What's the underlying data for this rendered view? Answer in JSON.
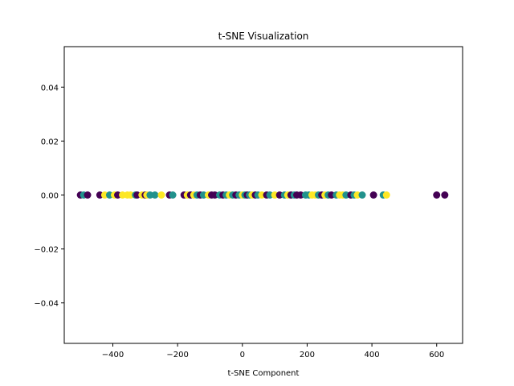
{
  "chart_data": {
    "type": "scatter",
    "title": "t-SNE Visualization",
    "xlabel": "t-SNE Component",
    "ylabel": "",
    "xlim": [
      -550,
      680
    ],
    "ylim": [
      -0.055,
      0.055
    ],
    "xticks": [
      -400,
      -200,
      0,
      200,
      400,
      600
    ],
    "xtick_labels": [
      "−400",
      "−200",
      "0",
      "200",
      "400",
      "600"
    ],
    "yticks": [
      -0.04,
      -0.02,
      0.0,
      0.02,
      0.04
    ],
    "ytick_labels": [
      "−0.04",
      "−0.02",
      "0.00",
      "0.02",
      "0.04"
    ],
    "grid": false,
    "legend": "none",
    "colors": {
      "purple": "#440154",
      "teal": "#21918c",
      "yellow": "#fde725"
    },
    "points": [
      {
        "x": -500,
        "y": 0,
        "c": "purple"
      },
      {
        "x": -490,
        "y": 0,
        "c": "teal"
      },
      {
        "x": -478,
        "y": 0,
        "c": "purple"
      },
      {
        "x": -440,
        "y": 0,
        "c": "purple"
      },
      {
        "x": -425,
        "y": 0,
        "c": "yellow"
      },
      {
        "x": -410,
        "y": 0,
        "c": "teal"
      },
      {
        "x": -395,
        "y": 0,
        "c": "yellow"
      },
      {
        "x": -385,
        "y": 0,
        "c": "purple"
      },
      {
        "x": -370,
        "y": 0,
        "c": "yellow"
      },
      {
        "x": -355,
        "y": 0,
        "c": "yellow"
      },
      {
        "x": -345,
        "y": 0,
        "c": "yellow"
      },
      {
        "x": -330,
        "y": 0,
        "c": "teal"
      },
      {
        "x": -325,
        "y": 0,
        "c": "purple"
      },
      {
        "x": -310,
        "y": 0,
        "c": "yellow"
      },
      {
        "x": -300,
        "y": 0,
        "c": "purple"
      },
      {
        "x": -295,
        "y": 0,
        "c": "yellow"
      },
      {
        "x": -285,
        "y": 0,
        "c": "teal"
      },
      {
        "x": -270,
        "y": 0,
        "c": "teal"
      },
      {
        "x": -250,
        "y": 0,
        "c": "yellow"
      },
      {
        "x": -225,
        "y": 0,
        "c": "purple"
      },
      {
        "x": -215,
        "y": 0,
        "c": "teal"
      },
      {
        "x": -180,
        "y": 0,
        "c": "purple"
      },
      {
        "x": -170,
        "y": 0,
        "c": "yellow"
      },
      {
        "x": -160,
        "y": 0,
        "c": "purple"
      },
      {
        "x": -150,
        "y": 0,
        "c": "yellow"
      },
      {
        "x": -140,
        "y": 0,
        "c": "teal"
      },
      {
        "x": -130,
        "y": 0,
        "c": "purple"
      },
      {
        "x": -120,
        "y": 0,
        "c": "teal"
      },
      {
        "x": -105,
        "y": 0,
        "c": "yellow"
      },
      {
        "x": -95,
        "y": 0,
        "c": "purple"
      },
      {
        "x": -85,
        "y": 0,
        "c": "purple"
      },
      {
        "x": -70,
        "y": 0,
        "c": "teal"
      },
      {
        "x": -60,
        "y": 0,
        "c": "purple"
      },
      {
        "x": -50,
        "y": 0,
        "c": "teal"
      },
      {
        "x": -40,
        "y": 0,
        "c": "yellow"
      },
      {
        "x": -30,
        "y": 0,
        "c": "teal"
      },
      {
        "x": -20,
        "y": 0,
        "c": "purple"
      },
      {
        "x": -10,
        "y": 0,
        "c": "teal"
      },
      {
        "x": 0,
        "y": 0,
        "c": "yellow"
      },
      {
        "x": 8,
        "y": 0,
        "c": "teal"
      },
      {
        "x": 15,
        "y": 0,
        "c": "purple"
      },
      {
        "x": 22,
        "y": 0,
        "c": "teal"
      },
      {
        "x": 30,
        "y": 0,
        "c": "yellow"
      },
      {
        "x": 40,
        "y": 0,
        "c": "purple"
      },
      {
        "x": 48,
        "y": 0,
        "c": "teal"
      },
      {
        "x": 60,
        "y": 0,
        "c": "yellow"
      },
      {
        "x": 75,
        "y": 0,
        "c": "purple"
      },
      {
        "x": 85,
        "y": 0,
        "c": "teal"
      },
      {
        "x": 100,
        "y": 0,
        "c": "yellow"
      },
      {
        "x": 115,
        "y": 0,
        "c": "purple"
      },
      {
        "x": 130,
        "y": 0,
        "c": "teal"
      },
      {
        "x": 140,
        "y": 0,
        "c": "yellow"
      },
      {
        "x": 150,
        "y": 0,
        "c": "purple"
      },
      {
        "x": 160,
        "y": 0,
        "c": "teal"
      },
      {
        "x": 168,
        "y": 0,
        "c": "purple"
      },
      {
        "x": 180,
        "y": 0,
        "c": "purple"
      },
      {
        "x": 195,
        "y": 0,
        "c": "teal"
      },
      {
        "x": 205,
        "y": 0,
        "c": "teal"
      },
      {
        "x": 215,
        "y": 0,
        "c": "yellow"
      },
      {
        "x": 225,
        "y": 0,
        "c": "yellow"
      },
      {
        "x": 235,
        "y": 0,
        "c": "teal"
      },
      {
        "x": 245,
        "y": 0,
        "c": "purple"
      },
      {
        "x": 255,
        "y": 0,
        "c": "yellow"
      },
      {
        "x": 265,
        "y": 0,
        "c": "teal"
      },
      {
        "x": 275,
        "y": 0,
        "c": "purple"
      },
      {
        "x": 290,
        "y": 0,
        "c": "teal"
      },
      {
        "x": 300,
        "y": 0,
        "c": "yellow"
      },
      {
        "x": 310,
        "y": 0,
        "c": "yellow"
      },
      {
        "x": 320,
        "y": 0,
        "c": "teal"
      },
      {
        "x": 335,
        "y": 0,
        "c": "purple"
      },
      {
        "x": 345,
        "y": 0,
        "c": "teal"
      },
      {
        "x": 355,
        "y": 0,
        "c": "yellow"
      },
      {
        "x": 370,
        "y": 0,
        "c": "teal"
      },
      {
        "x": 405,
        "y": 0,
        "c": "purple"
      },
      {
        "x": 435,
        "y": 0,
        "c": "teal"
      },
      {
        "x": 445,
        "y": 0,
        "c": "yellow"
      },
      {
        "x": 600,
        "y": 0,
        "c": "purple"
      },
      {
        "x": 625,
        "y": 0,
        "c": "purple"
      }
    ]
  }
}
